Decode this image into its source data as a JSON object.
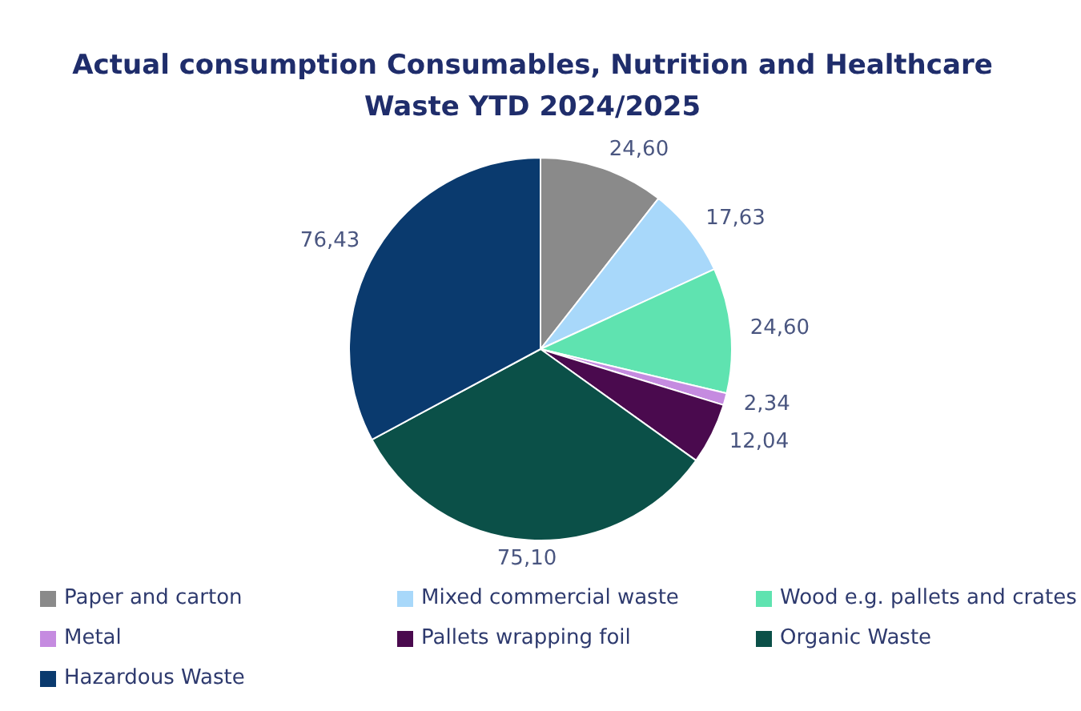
{
  "chart_data": {
    "type": "pie",
    "title": "Actual consumption Consumables, Nutrition and Healthcare Waste YTD 2024/2025",
    "categories": [
      "Paper and carton",
      "Mixed commercial waste",
      "Wood e.g. pallets and crates",
      "Metal",
      "Pallets wrapping foil",
      "Organic Waste",
      "Hazardous Waste"
    ],
    "values": [
      24.6,
      17.63,
      24.6,
      2.34,
      12.04,
      75.1,
      76.43
    ],
    "value_labels": [
      "24,60",
      "17,63",
      "24,60",
      "2,34",
      "12,04",
      "75,10",
      "76,43"
    ],
    "colors": [
      "#8a8a8a",
      "#a8d8fa",
      "#5fe3b0",
      "#c58be0",
      "#4a0a4e",
      "#0b5048",
      "#0a3a6e"
    ],
    "legend": "bottom"
  }
}
